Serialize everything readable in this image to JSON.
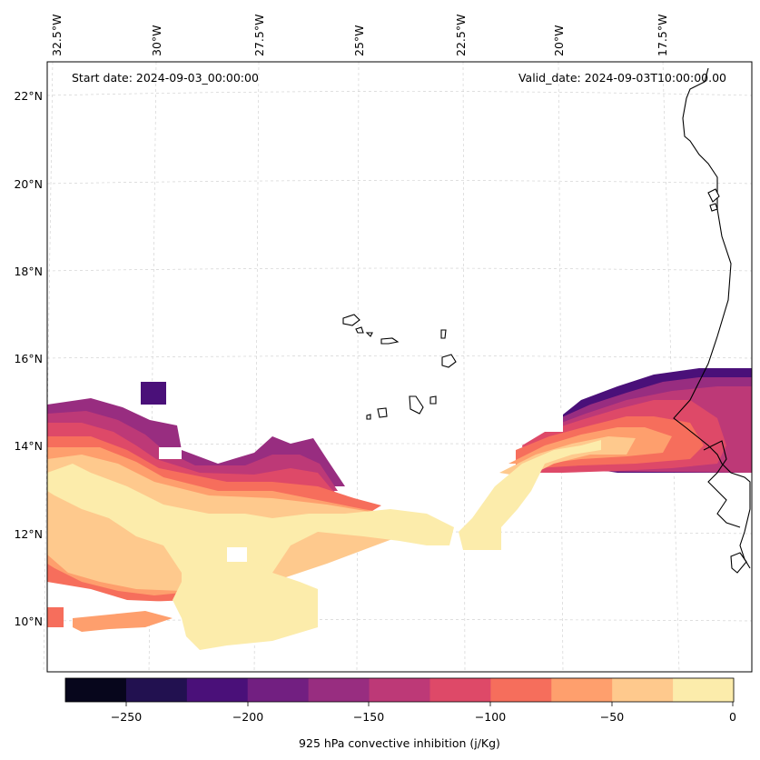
{
  "map": {
    "annotations": {
      "start_date": "Start date: 2024-09-03_00:00:00",
      "valid_date": "Valid_date: 2024-09-03T10:00:00.00"
    },
    "lon_labels": [
      "32.5°W",
      "30°W",
      "27.5°W",
      "25°W",
      "22.5°W",
      "20°W",
      "17.5°W"
    ],
    "lat_labels": [
      "22°N",
      "20°N",
      "18°N",
      "16°N",
      "14°N",
      "12°N",
      "10°N"
    ],
    "colorbar": {
      "label": "925 hPa convective inhibition (j/Kg)",
      "tick_labels": [
        "−250",
        "−200",
        "−150",
        "−100",
        "−50",
        "0"
      ],
      "range": [
        -275,
        0
      ],
      "step": 25,
      "colors": [
        "#07061c",
        "#221150",
        "#4a1079",
        "#721f81",
        "#982d80",
        "#bd3977",
        "#de4968",
        "#f66e5c",
        "#fe9f6d",
        "#fec98d",
        "#fcecab"
      ]
    }
  }
}
